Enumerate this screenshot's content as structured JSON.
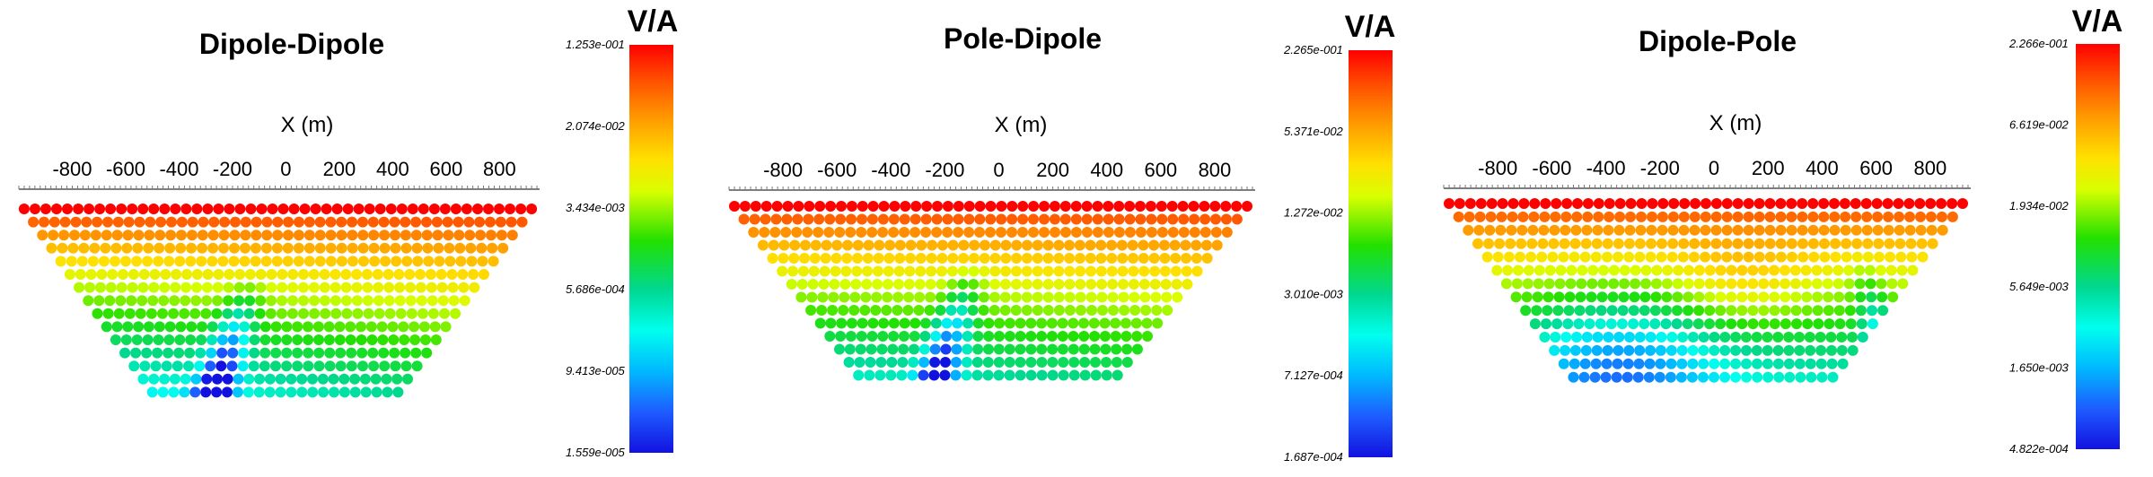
{
  "chart_data": [
    {
      "type": "scatter",
      "title": "Dipole-Dipole",
      "xlabel": "X (m)",
      "xticks": [
        "-800",
        "-600",
        "-400",
        "-200",
        "0",
        "200",
        "400",
        "600",
        "800"
      ],
      "xlim": [
        -1000,
        950
      ],
      "colorbar": {
        "unit": "V/A",
        "scale": "log",
        "tick_labels": [
          "1.253e-001",
          "2.074e-002",
          "3.434e-003",
          "5.686e-004",
          "9.413e-005",
          "1.559e-005"
        ]
      },
      "pseudosection": {
        "n_levels": 15,
        "surface_x_range": [
          -980,
          920
        ],
        "bottom_x_range": [
          -500,
          420
        ],
        "anomaly": "dipping low (blue) zone from about x=0 near surface to x=-200 at depth"
      }
    },
    {
      "type": "scatter",
      "title": "Pole-Dipole",
      "xlabel": "X (m)",
      "xticks": [
        "-800",
        "-600",
        "-400",
        "-200",
        "0",
        "200",
        "400",
        "600",
        "800"
      ],
      "xlim": [
        -1000,
        950
      ],
      "colorbar": {
        "unit": "V/A",
        "scale": "log",
        "tick_labels": [
          "2.265e-001",
          "5.371e-002",
          "1.272e-002",
          "3.010e-003",
          "7.127e-004",
          "1.687e-004"
        ]
      },
      "pseudosection": {
        "n_levels": 14,
        "surface_x_range": [
          -980,
          920
        ],
        "bottom_x_range": [
          -520,
          440
        ],
        "anomaly": "dipping low (blue) zone from about x=0 near surface to x=-200 at depth"
      }
    },
    {
      "type": "scatter",
      "title": "Dipole-Pole",
      "xlabel": "X (m)",
      "xticks": [
        "-800",
        "-600",
        "-400",
        "-200",
        "0",
        "200",
        "400",
        "600",
        "800"
      ],
      "xlim": [
        -1000,
        950
      ],
      "colorbar": {
        "unit": "V/A",
        "scale": "log",
        "tick_labels": [
          "2.266e-001",
          "6.619e-002",
          "1.934e-002",
          "5.649e-003",
          "1.650e-003",
          "4.822e-004"
        ]
      },
      "pseudosection": {
        "n_levels": 14,
        "surface_x_range": [
          -980,
          920
        ],
        "bottom_x_range": [
          -520,
          440
        ],
        "anomaly": "low (blue) zone on left at depth and dipping low zone near x=600"
      }
    }
  ]
}
